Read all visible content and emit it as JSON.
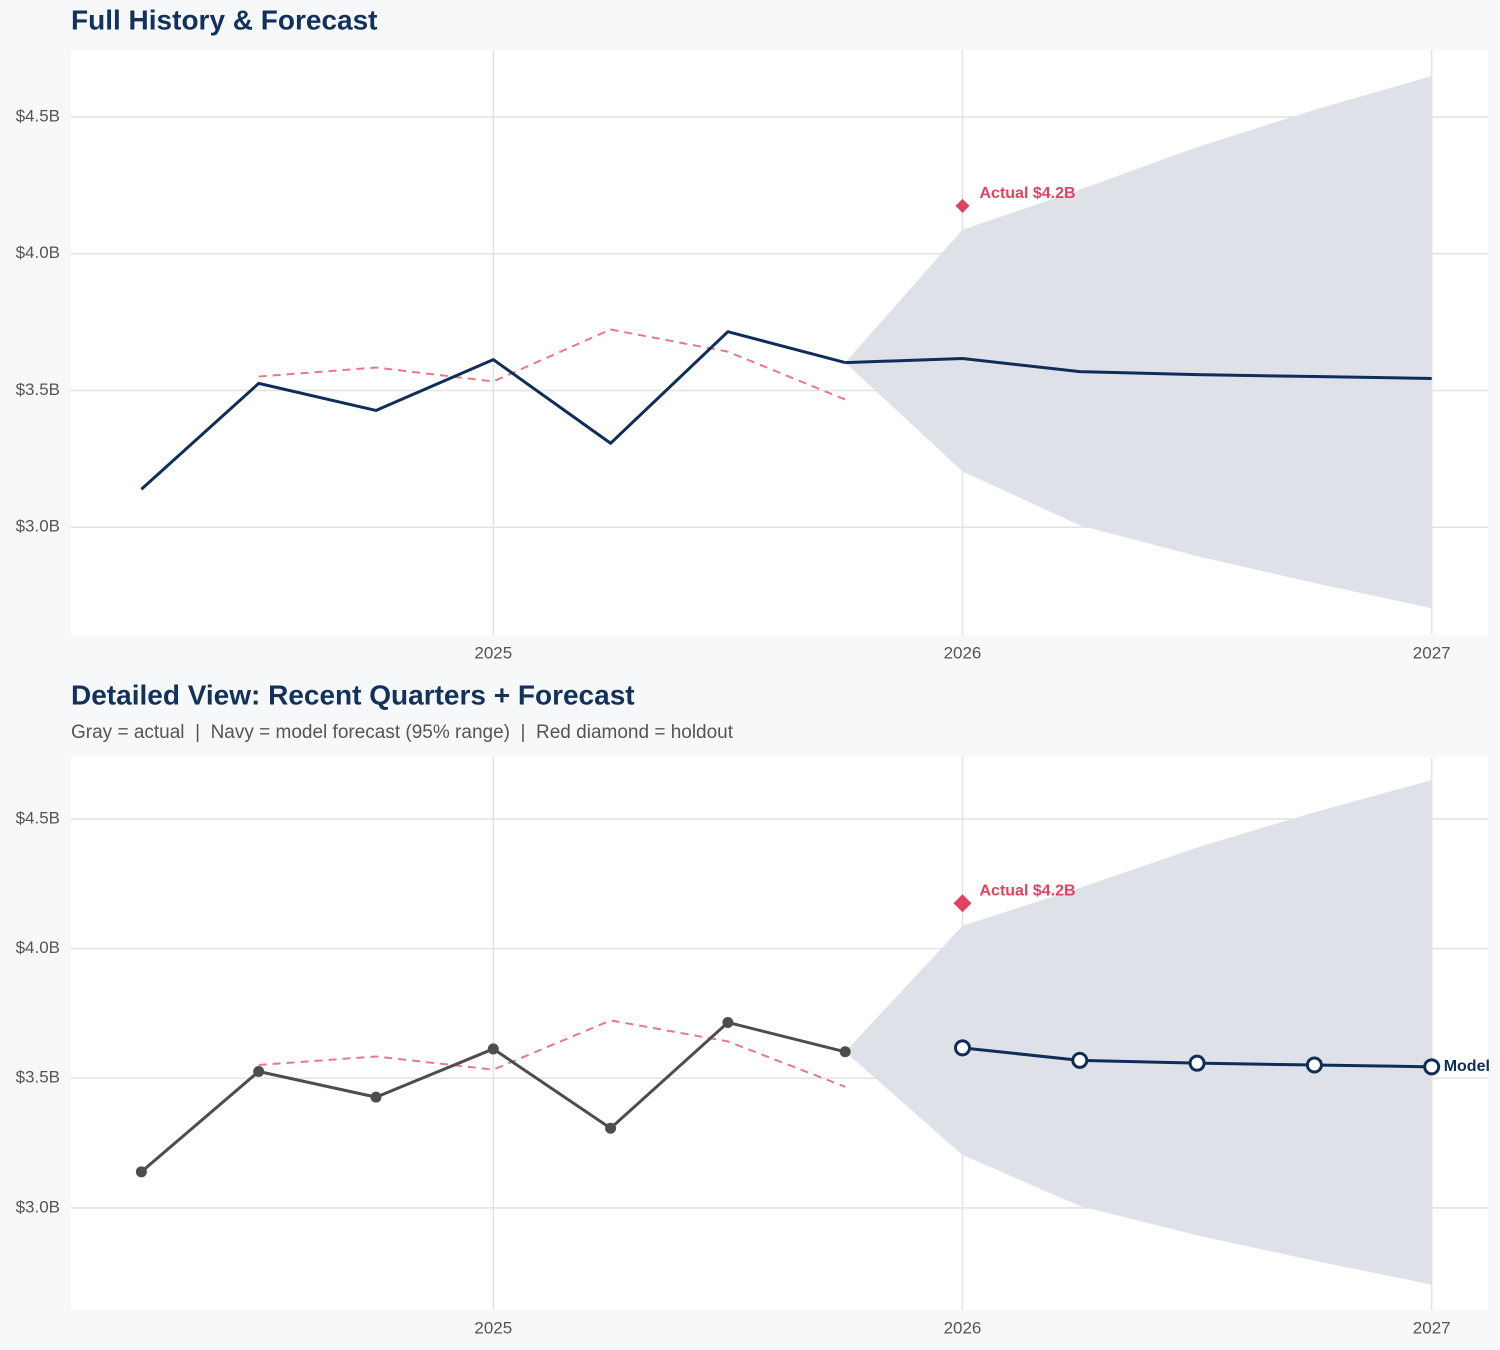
{
  "chart_data": [
    {
      "type": "line",
      "title": "Full History & Forecast",
      "xlim": [
        2024.1,
        2027.12
      ],
      "xticks": [
        2025,
        2026,
        2027
      ],
      "ylim": [
        2.606,
        4.745
      ],
      "yticks": [
        {
          "value": 3.0,
          "label": "$3.0B"
        },
        {
          "value": 3.5,
          "label": "$3.5B"
        },
        {
          "value": 4.0,
          "label": "$4.0B"
        },
        {
          "value": 4.5,
          "label": "$4.5B"
        }
      ],
      "grid": true,
      "markers": false,
      "band": {
        "color": "#dce0e7",
        "x": [
          2025.75,
          2026.0,
          2026.25,
          2026.5,
          2026.75,
          2027.0
        ],
        "upper": [
          3.602,
          4.088,
          4.234,
          4.39,
          4.526,
          4.65
        ],
        "lower": [
          3.602,
          3.204,
          3.007,
          2.894,
          2.796,
          2.704
        ]
      },
      "series": [
        {
          "color": "#e8788a",
          "dash": true,
          "x": [
            2024.5,
            2024.75,
            2025.0,
            2025.25,
            2025.5,
            2025.75
          ],
          "values": [
            3.551,
            3.584,
            3.533,
            3.723,
            3.642,
            3.467
          ]
        },
        {
          "color": "#0f2d57",
          "x": [
            2024.25,
            2024.5,
            2024.75,
            2025.0,
            2025.25,
            2025.5,
            2025.75
          ],
          "values": [
            3.139,
            3.526,
            3.427,
            3.613,
            3.307,
            3.715,
            3.602
          ]
        },
        {
          "color": "#0f2d57",
          "x": [
            2025.75,
            2026.0,
            2026.25,
            2026.5,
            2026.75,
            2027.0
          ],
          "values": [
            3.602,
            3.617,
            3.569,
            3.558,
            3.551,
            3.544
          ]
        }
      ],
      "annotations": [
        {
          "text": "Actual $4.2B",
          "x": 2026.0,
          "y": 4.175,
          "color": "#e0435f"
        }
      ]
    },
    {
      "type": "line",
      "title": "Detailed View: Recent Quarters + Forecast",
      "subtitle": "Gray = actual  |  Navy = model forecast (95% range)  |  Red diamond = holdout",
      "xlim": [
        2024.1,
        2027.12
      ],
      "xticks": [
        2025,
        2026,
        2027
      ],
      "ylim": [
        2.606,
        4.739
      ],
      "yticks": [
        {
          "value": 3.0,
          "label": "$3.0B"
        },
        {
          "value": 3.5,
          "label": "$3.5B"
        },
        {
          "value": 4.0,
          "label": "$4.0B"
        },
        {
          "value": 4.5,
          "label": "$4.5B"
        }
      ],
      "grid": true,
      "markers": true,
      "band": {
        "color": "#dce0e7",
        "x": [
          2025.75,
          2026.0,
          2026.25,
          2026.5,
          2026.75,
          2027.0
        ],
        "upper": [
          3.602,
          4.088,
          4.234,
          4.39,
          4.526,
          4.65
        ],
        "lower": [
          3.602,
          3.204,
          3.007,
          2.894,
          2.796,
          2.704
        ]
      },
      "series": [
        {
          "color": "#e8788a",
          "dash": true,
          "x": [
            2024.5,
            2024.75,
            2025.0,
            2025.25,
            2025.5,
            2025.75
          ],
          "values": [
            3.551,
            3.584,
            3.533,
            3.723,
            3.642,
            3.467
          ]
        },
        {
          "color": "#4d4d4d",
          "marker": "dot",
          "x": [
            2024.25,
            2024.5,
            2024.75,
            2025.0,
            2025.25,
            2025.5,
            2025.75
          ],
          "values": [
            3.139,
            3.526,
            3.427,
            3.613,
            3.307,
            3.715,
            3.602
          ]
        },
        {
          "name": "Model",
          "color": "#0f2d57",
          "marker": "ring",
          "x": [
            2026.0,
            2026.25,
            2026.5,
            2026.75,
            2027.0
          ],
          "values": [
            3.617,
            3.569,
            3.558,
            3.551,
            3.544
          ]
        }
      ],
      "annotations": [
        {
          "text": "Actual $4.2B",
          "x": 2026.0,
          "y": 4.175,
          "color": "#e0435f"
        }
      ]
    }
  ]
}
